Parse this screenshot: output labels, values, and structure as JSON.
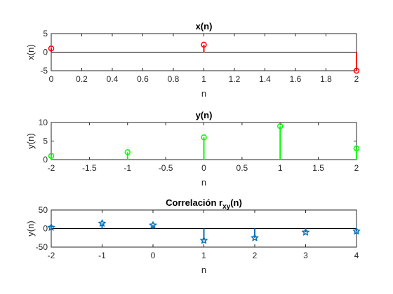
{
  "chart_data": [
    {
      "type": "stem",
      "title": "x(n)",
      "xlabel": "n",
      "ylabel": "x(n)",
      "xlim": [
        0,
        2
      ],
      "ylim": [
        -5,
        5
      ],
      "xticks": [
        "0",
        "0.2",
        "0.4",
        "0.6",
        "0.8",
        "1",
        "1.2",
        "1.4",
        "1.6",
        "1.8",
        "2"
      ],
      "yticks": [
        "-5",
        "0",
        "5"
      ],
      "marker": "circle",
      "color": "#ff0000",
      "x": [
        0,
        1,
        2
      ],
      "y": [
        1,
        2,
        -5
      ]
    },
    {
      "type": "stem",
      "title": "y(n)",
      "xlabel": "n",
      "ylabel": "y(n)",
      "xlim": [
        -2,
        2
      ],
      "ylim": [
        0,
        10
      ],
      "xticks": [
        "-2",
        "-1.5",
        "-1",
        "-0.5",
        "0",
        "0.5",
        "1",
        "1.5",
        "2"
      ],
      "yticks": [
        "0",
        "5",
        "10"
      ],
      "marker": "circle",
      "color": "#00ff00",
      "x": [
        -2,
        -1,
        0,
        1,
        2
      ],
      "y": [
        1,
        2,
        6,
        9,
        3
      ]
    },
    {
      "type": "stem",
      "title": "Correlación r",
      "title_subscript": "xy",
      "title_suffix": "(n)",
      "xlabel": "n",
      "ylabel": "y(n)",
      "xlim": [
        -2,
        4
      ],
      "ylim": [
        -50,
        50
      ],
      "xticks": [
        "-2",
        "-1",
        "0",
        "1",
        "2",
        "3",
        "4"
      ],
      "yticks": [
        "-50",
        "0",
        "50"
      ],
      "marker": "pentagram",
      "color": "#0072bd",
      "x": [
        -2,
        -1,
        0,
        1,
        2,
        3,
        4
      ],
      "y": [
        3,
        14,
        9,
        -32,
        -25,
        -10,
        -7
      ]
    }
  ]
}
